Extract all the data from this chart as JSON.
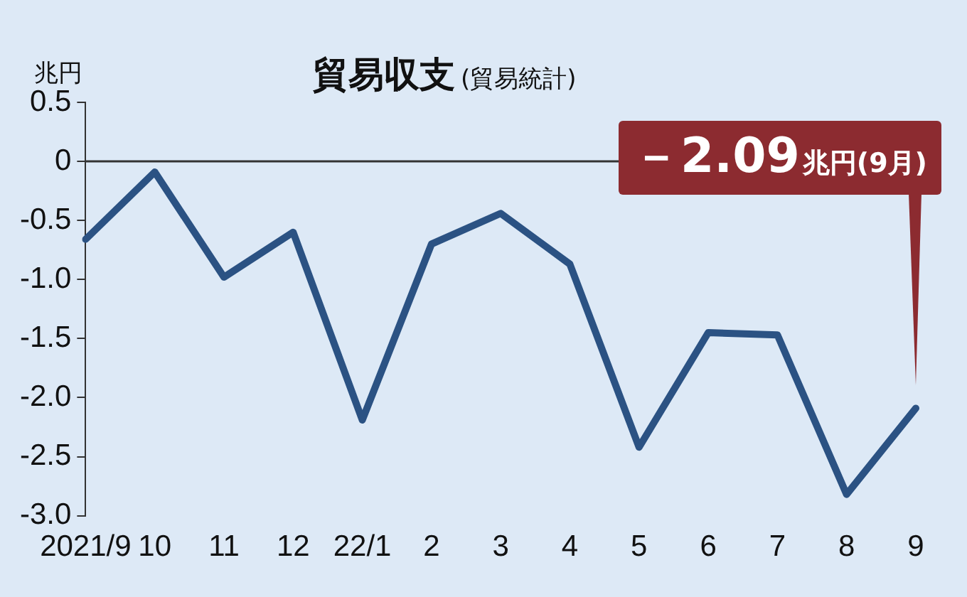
{
  "chart_data": {
    "type": "line",
    "title": "貿易収支",
    "subtitle": "(貿易統計)",
    "ylabel": "兆円",
    "categories": [
      "2021/9",
      "10",
      "11",
      "12",
      "22/1",
      "2",
      "3",
      "4",
      "5",
      "6",
      "7",
      "8",
      "9"
    ],
    "series": [
      {
        "color": "#2b5283",
        "values": [
          -0.66,
          -0.09,
          -0.98,
          -0.6,
          -2.19,
          -0.7,
          -0.44,
          -0.87,
          -2.42,
          -1.45,
          -1.47,
          -2.82,
          -2.09
        ]
      }
    ],
    "ylim": [
      -3.0,
      0.5
    ],
    "yticks": [
      0.5,
      0,
      -0.5,
      {
        "value": -1,
        "label": "-1.0"
      },
      {
        "value": -1.5,
        "label": "-1.5"
      },
      {
        "value": -2,
        "label": "-2.0"
      },
      {
        "value": -2.5,
        "label": "-2.5"
      },
      {
        "value": -3,
        "label": "-3.0"
      }
    ],
    "ref_lines": [
      {
        "axis": "y",
        "value": 0,
        "color": "#333333"
      }
    ],
    "annotations": [
      "－2.09兆円(9月)"
    ],
    "grid": false,
    "legend": false,
    "marker": "none",
    "line_style": "solid"
  }
}
